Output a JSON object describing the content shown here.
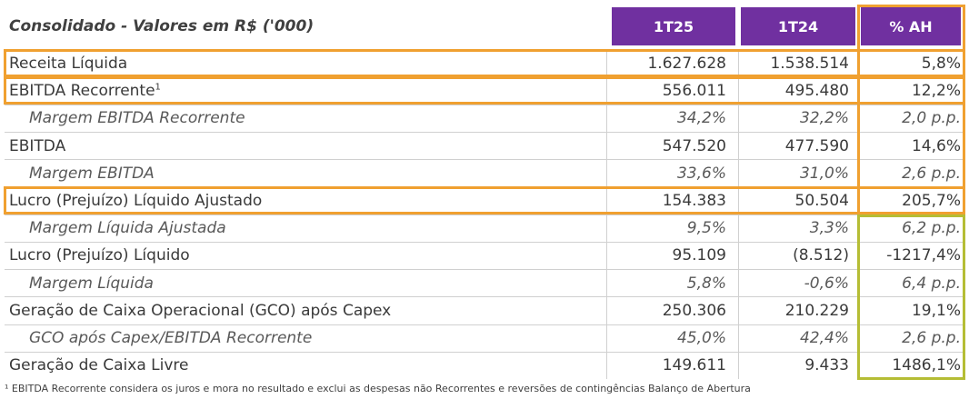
{
  "table": {
    "title": "Consolidado - Valores em R$ ('000)",
    "columns": [
      "1T25",
      "1T24",
      "% AH"
    ],
    "rows": [
      {
        "label": "Receita Líquida",
        "sup": "",
        "v1": "1.627.628",
        "v2": "1.538.514",
        "v3": "5,8%"
      },
      {
        "label": "EBITDA Recorrente",
        "sup": "1",
        "v1": "556.011",
        "v2": "495.480",
        "v3": "12,2%"
      },
      {
        "label": "Margem EBITDA Recorrente",
        "sup": "",
        "v1": "34,2%",
        "v2": "32,2%",
        "v3": "2,0 p.p."
      },
      {
        "label": "EBITDA",
        "sup": "",
        "v1": "547.520",
        "v2": "477.590",
        "v3": "14,6%"
      },
      {
        "label": "Margem EBITDA",
        "sup": "",
        "v1": "33,6%",
        "v2": "31,0%",
        "v3": "2,6 p.p."
      },
      {
        "label": "Lucro (Prejuízo) Líquido Ajustado",
        "sup": "",
        "v1": "154.383",
        "v2": "50.504",
        "v3": "205,7%"
      },
      {
        "label": "Margem Líquida Ajustada",
        "sup": "",
        "v1": "9,5%",
        "v2": "3,3%",
        "v3": "6,2 p.p."
      },
      {
        "label": "Lucro (Prejuízo) Líquido",
        "sup": "",
        "v1": "95.109",
        "v2": "(8.512)",
        "v3": "-1217,4%"
      },
      {
        "label": "Margem Líquida",
        "sup": "",
        "v1": "5,8%",
        "v2": "-0,6%",
        "v3": "6,4 p.p."
      },
      {
        "label": "Geração de Caixa Operacional (GCO) após Capex",
        "sup": "",
        "v1": "250.306",
        "v2": "210.229",
        "v3": "19,1%"
      },
      {
        "label": "GCO após Capex/EBITDA Recorrente",
        "sup": "",
        "v1": "45,0%",
        "v2": "42,4%",
        "v3": "2,6 p.p."
      },
      {
        "label": "Geração de Caixa Livre",
        "sup": "",
        "v1": "149.611",
        "v2": "9.433",
        "v3": "1486,1%"
      }
    ]
  },
  "footnote": "¹ EBITDA Recorrente considera os juros e mora no resultado e exclui as despesas não Recorrentes e reversões de contingências Balanço de Abertura",
  "colors": {
    "header_bg": "#7030a0",
    "highlight_orange": "#f0a030",
    "highlight_olive": "#b5bd35"
  }
}
